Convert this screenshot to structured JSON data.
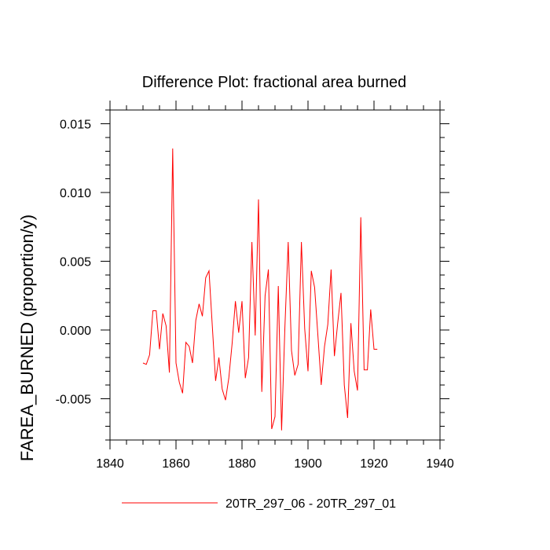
{
  "chart_data": {
    "type": "line",
    "title": "Difference Plot: fractional area burned",
    "xlabel": "",
    "ylabel": "FAREA_BURNED  (proportion/y)",
    "xlim": [
      1840,
      1940
    ],
    "ylim": [
      -0.008,
      0.016
    ],
    "xticks": [
      1840,
      1860,
      1880,
      1900,
      1920,
      1940
    ],
    "xtick_labels": [
      "1840",
      "1860",
      "1880",
      "1900",
      "1920",
      "1940"
    ],
    "yticks": [
      -0.005,
      0.0,
      0.005,
      0.01,
      0.015
    ],
    "ytick_labels": [
      "-0.005",
      "0.000",
      "0.005",
      "0.010",
      "0.015"
    ],
    "grid": false,
    "legend_position": "bottom-center",
    "series": [
      {
        "name": "20TR_297_06 - 20TR_297_01",
        "color": "#ff0000",
        "x": [
          1850,
          1851,
          1852,
          1853,
          1854,
          1855,
          1856,
          1857,
          1858,
          1859,
          1860,
          1861,
          1862,
          1863,
          1864,
          1865,
          1866,
          1867,
          1868,
          1869,
          1870,
          1871,
          1872,
          1873,
          1874,
          1875,
          1876,
          1877,
          1878,
          1879,
          1880,
          1881,
          1882,
          1883,
          1884,
          1885,
          1886,
          1887,
          1888,
          1889,
          1890,
          1891,
          1892,
          1893,
          1894,
          1895,
          1896,
          1897,
          1898,
          1899,
          1900,
          1901,
          1902,
          1903,
          1904,
          1905,
          1906,
          1907,
          1908,
          1909,
          1910,
          1911,
          1912,
          1913,
          1914,
          1915,
          1916,
          1917,
          1918,
          1919,
          1920,
          1921
        ],
        "y": [
          -0.0024,
          -0.0025,
          -0.0018,
          0.0014,
          0.0014,
          -0.0014,
          0.0012,
          0.0003,
          -0.0031,
          0.0132,
          -0.0024,
          -0.0038,
          -0.0046,
          -0.0009,
          -0.0012,
          -0.0024,
          0.0007,
          0.0019,
          0.001,
          0.0038,
          0.0043,
          0.0003,
          -0.0037,
          -0.002,
          -0.0043,
          -0.0051,
          -0.0035,
          -0.001,
          0.0021,
          -0.0002,
          0.0021,
          -0.0035,
          -0.002,
          0.0064,
          -0.0004,
          0.0095,
          -0.0045,
          0.0025,
          0.0044,
          -0.0072,
          -0.0063,
          0.0032,
          -0.0073,
          0.0002,
          0.0064,
          -0.0015,
          -0.0033,
          -0.0025,
          0.0064,
          0.0001,
          -0.003,
          0.0043,
          0.0031,
          -0.0004,
          -0.004,
          -0.0012,
          0.0004,
          0.0044,
          -0.0019,
          0.0005,
          0.0027,
          -0.004,
          -0.0064,
          0.0005,
          -0.003,
          -0.0044,
          0.0082,
          -0.0029,
          -0.0029,
          0.0015,
          -0.0014,
          -0.0014
        ]
      }
    ]
  }
}
